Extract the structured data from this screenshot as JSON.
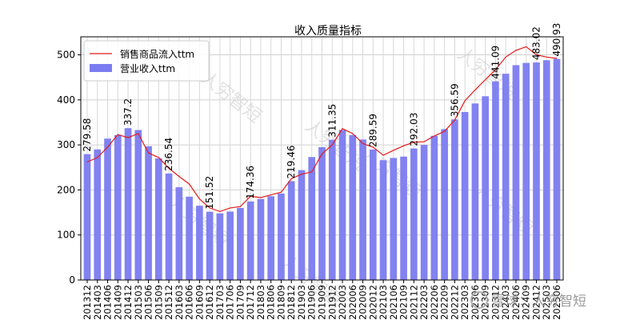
{
  "chart_data": {
    "type": "bar+line",
    "title": "收入质量指标",
    "xlabel": "",
    "ylabel": "",
    "ylim": [
      0,
      540
    ],
    "yticks": [
      0,
      100,
      200,
      300,
      400,
      500
    ],
    "grid": true,
    "legend_position": "top-left",
    "categories": [
      "201312",
      "201403",
      "201406",
      "201409",
      "201412",
      "201503",
      "201506",
      "201509",
      "201512",
      "201603",
      "201606",
      "201609",
      "201612",
      "201703",
      "201706",
      "201709",
      "201712",
      "201803",
      "201806",
      "201809",
      "201812",
      "201903",
      "201906",
      "201909",
      "201912",
      "202003",
      "202006",
      "202009",
      "202012",
      "202103",
      "202106",
      "202109",
      "202112",
      "202203",
      "202206",
      "202209",
      "202212",
      "202303",
      "202306",
      "202309",
      "202312",
      "202403",
      "202406",
      "202409",
      "202412",
      "202503",
      "202506"
    ],
    "x_tick_labels": [
      "201312",
      "201403",
      "201406",
      "201409",
      "201412",
      "201503",
      "201506",
      "201509",
      "201512",
      "201603",
      "201606",
      "201609",
      "201612",
      "201703",
      "201706",
      "201709",
      "201712",
      "201803",
      "201806",
      "201809",
      "201812",
      "201903",
      "201906",
      "201909",
      "201912",
      "202003",
      "202006",
      "202009",
      "202012",
      "202103",
      "202106",
      "202109",
      "202112",
      "202203",
      "202206",
      "202209",
      "202212",
      "202303",
      "202306",
      "202309",
      "202312",
      "202403",
      "202406",
      "202409",
      "202412",
      "202503",
      "202506"
    ],
    "series": [
      {
        "name": "营业收入ttm",
        "type": "bar",
        "color": "#7b7bf0",
        "values": [
          279.58,
          290,
          314,
          322,
          337.2,
          333,
          297,
          270,
          236.54,
          206,
          185,
          165,
          151.52,
          148,
          152,
          160,
          174.36,
          180,
          186,
          192,
          219.46,
          244,
          273,
          295,
          311.35,
          333,
          322,
          312,
          289.59,
          266,
          271,
          274,
          292.03,
          300,
          320,
          335,
          356.59,
          373,
          392,
          408,
          441.09,
          458,
          477,
          482,
          483.02,
          488,
          490.93
        ]
      },
      {
        "name": "销售商品流入ttm",
        "type": "line",
        "color": "#e41a1c",
        "values": [
          262,
          272,
          295,
          323,
          316,
          325,
          282,
          272,
          248,
          230,
          213,
          180,
          160,
          152,
          160,
          163,
          186,
          183,
          189,
          195,
          225,
          235,
          240,
          280,
          300,
          336,
          325,
          303,
          295,
          277,
          288,
          298,
          306,
          307,
          320,
          330,
          355,
          398,
          422,
          445,
          467,
          495,
          510,
          518,
          500,
          495,
          492
        ]
      }
    ],
    "data_labels": [
      {
        "category": "201312",
        "text": "279.58"
      },
      {
        "category": "201412",
        "text": "337.2"
      },
      {
        "category": "201512",
        "text": "236.54"
      },
      {
        "category": "201612",
        "text": "151.52"
      },
      {
        "category": "201712",
        "text": "174.36"
      },
      {
        "category": "201812",
        "text": "219.46"
      },
      {
        "category": "201912",
        "text": "311.35"
      },
      {
        "category": "202012",
        "text": "289.59"
      },
      {
        "category": "202112",
        "text": "292.03"
      },
      {
        "category": "202212",
        "text": "356.59"
      },
      {
        "category": "202312",
        "text": "441.09"
      },
      {
        "category": "202412",
        "text": "483.02"
      },
      {
        "category": "202506",
        "text": "490.93"
      }
    ]
  },
  "watermark": {
    "text": "人穷智短"
  },
  "brand": {
    "text": "雪球：人穷智短"
  }
}
